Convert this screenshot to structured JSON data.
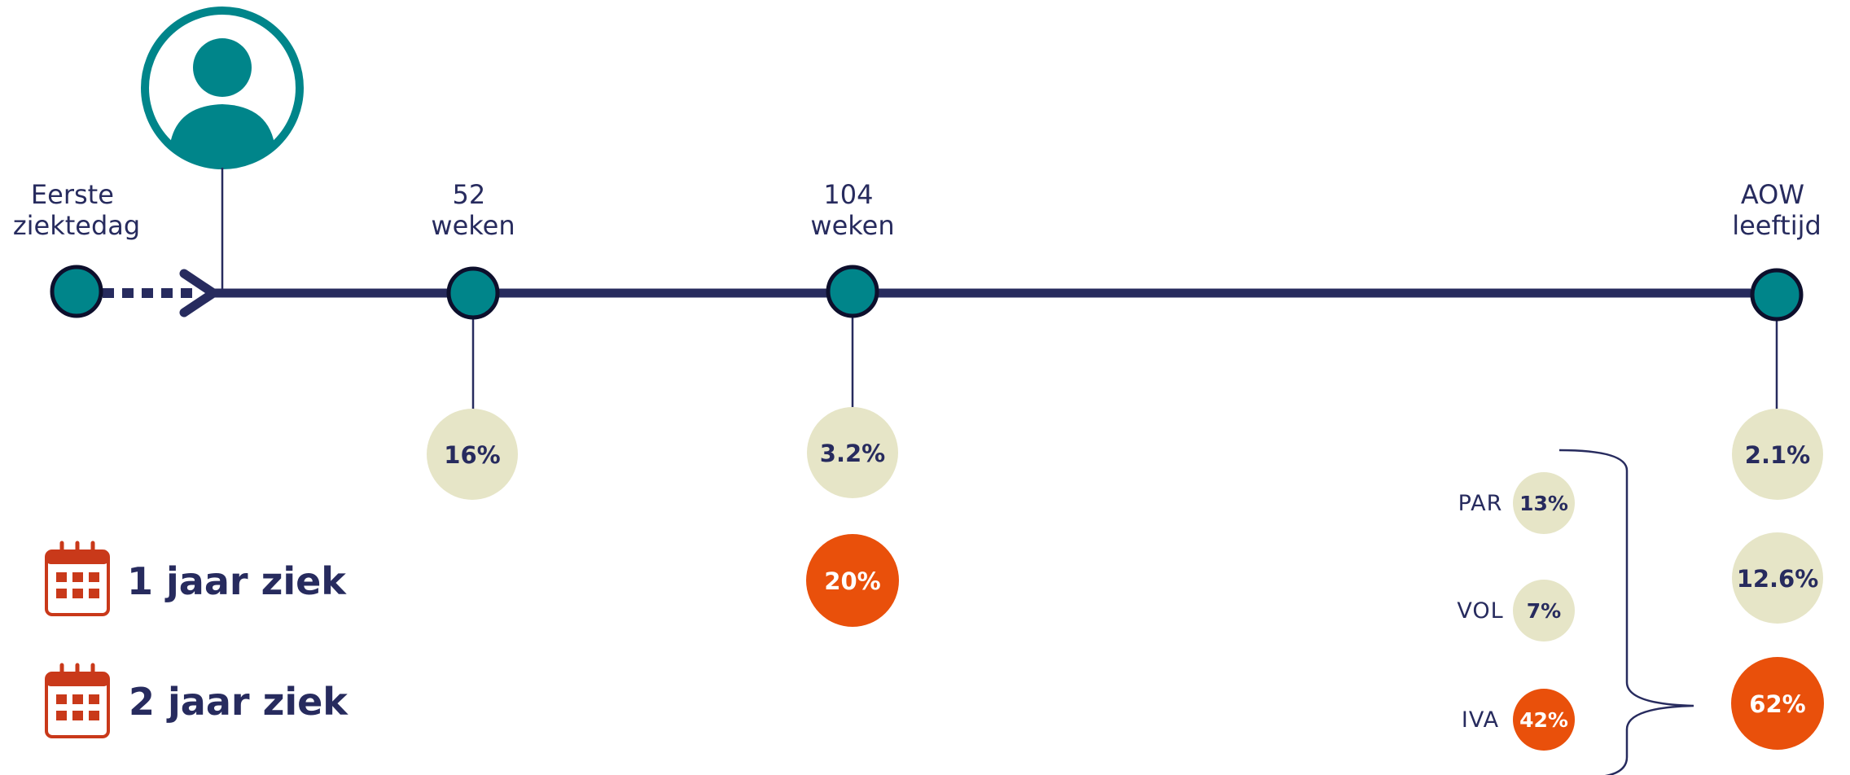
{
  "colors": {
    "navy": "#272b5e",
    "teal": "#00858a",
    "beige": "#e6e5c7",
    "orange": "#e9500b",
    "calendar": "#c9391a"
  },
  "stages": {
    "first": [
      "Eerste",
      "ziektedag"
    ],
    "week52": [
      "52",
      "weken"
    ],
    "week104": [
      "104",
      "weken"
    ],
    "aow": [
      "AOW",
      "leeftijd"
    ]
  },
  "values": {
    "week52_one_year": "16%",
    "week104_one_year": "3.2%",
    "week104_two_year": "20%",
    "aow_one_year": "2.1%",
    "aow_mid": "12.6%",
    "aow_two_year": "62%"
  },
  "breakdown": [
    {
      "label": "PAR",
      "value": "13%"
    },
    {
      "label": "VOL",
      "value": "7%"
    },
    {
      "label": "IVA",
      "value": "42%"
    }
  ],
  "legend": {
    "one_year": "1 jaar ziek",
    "two_year": "2 jaar ziek"
  },
  "icons": {
    "person": "person-icon",
    "calendar": "calendar-icon"
  }
}
